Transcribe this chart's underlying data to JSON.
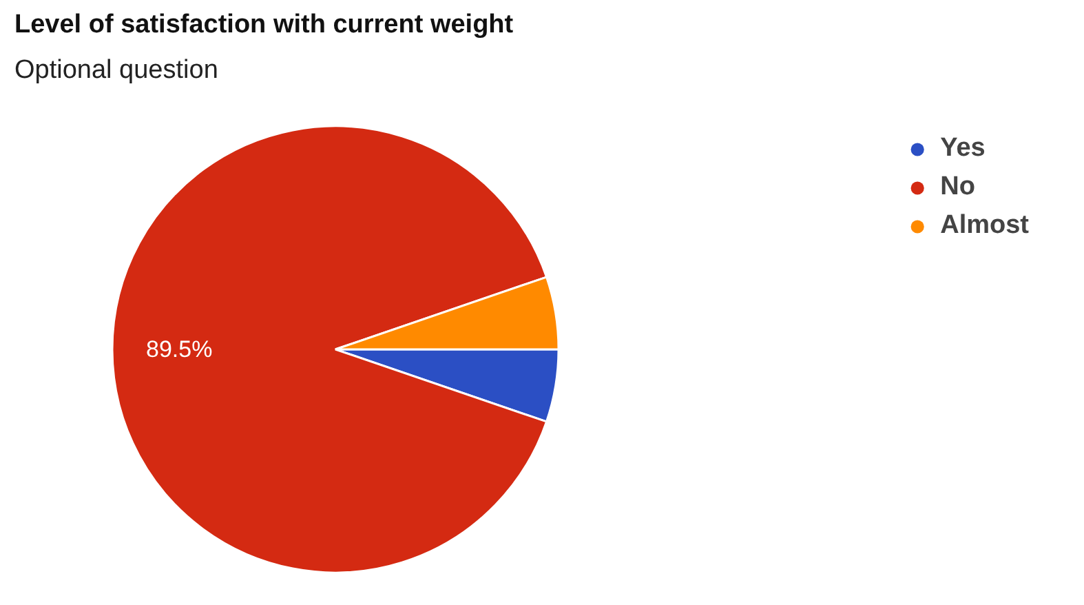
{
  "chart_data": {
    "type": "pie",
    "title": "Level of satisfaction with current weight",
    "subtitle": "Optional question",
    "categories": [
      "Yes",
      "No",
      "Almost"
    ],
    "values": [
      5.25,
      89.5,
      5.25
    ],
    "colors": [
      "#2b4fc4",
      "#d42a12",
      "#ff8a00"
    ],
    "value_labels": [
      null,
      "89.5%",
      null
    ],
    "legend": "top right"
  }
}
